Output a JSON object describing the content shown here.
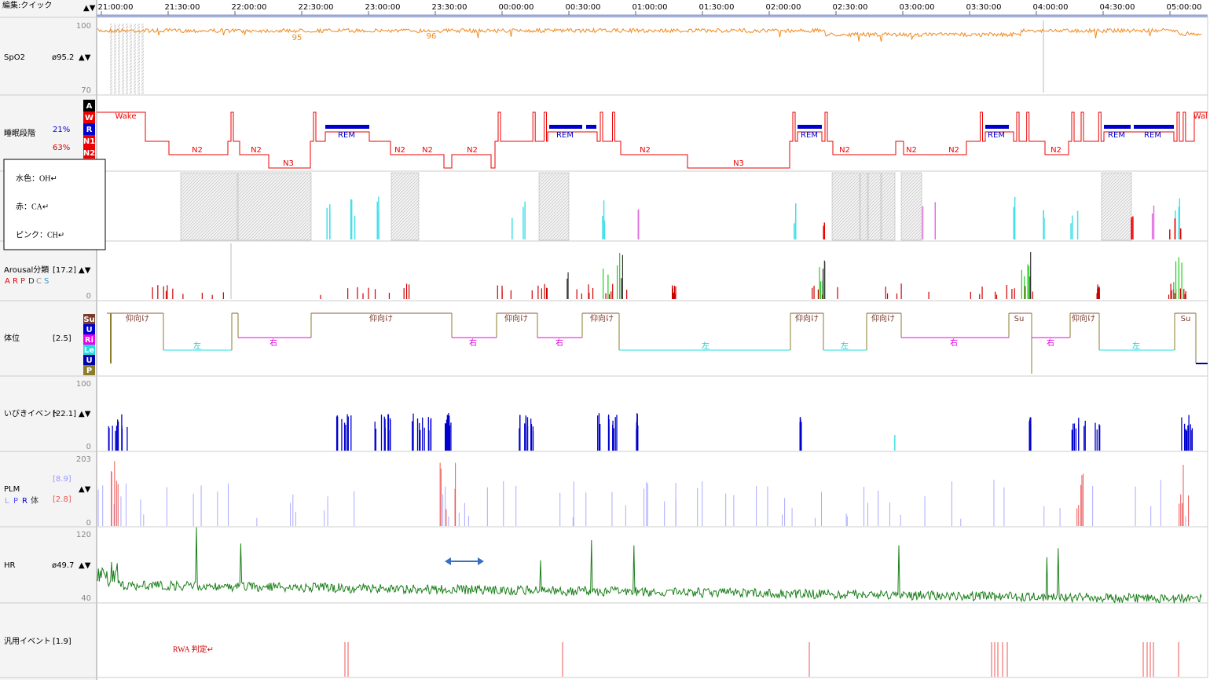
{
  "header": {
    "menu": "編集:クイック",
    "sort": "▲▼",
    "times": [
      "21:00:00",
      "21:30:00",
      "22:00:00",
      "22:30:00",
      "23:00:00",
      "23:30:00",
      "00:00:00",
      "00:30:00",
      "01:00:00",
      "01:30:00",
      "02:00:00",
      "02:30:00",
      "03:00:00",
      "03:30:00",
      "04:00:00",
      "04:30:00",
      "05:00:00"
    ]
  },
  "spo2": {
    "label": "SpO2",
    "value": "ø95.2",
    "arrows": "▲▼",
    "top": "100",
    "bottom": "70",
    "trace_labels": [
      "95",
      "96"
    ]
  },
  "sleep": {
    "label": "睡眠段階",
    "pct1": "21%",
    "pct2": "63%",
    "keys": [
      "A",
      "W",
      "R",
      "N1",
      "N2"
    ],
    "trace_labels": [
      "Wake",
      "N2",
      "N2",
      "N3",
      "REM",
      "N2",
      "N2",
      "N2",
      "REM",
      "N2",
      "N3",
      "REM",
      "N2",
      "N2",
      "N2",
      "REM",
      "N2",
      "REM",
      "REM",
      "Wal"
    ]
  },
  "legend": [
    "水色：OH↵",
    "赤：CA↵",
    "ピンク：CH↵"
  ],
  "arousal": {
    "label": "Arousal分類",
    "value": "[17.2]",
    "arrows": "▲▼",
    "keys": [
      "A",
      "R",
      "P",
      "D",
      "C",
      "S"
    ],
    "bottom": "0"
  },
  "position": {
    "label": "体位",
    "value": "[2.5]",
    "keys": [
      "Su",
      "U",
      "Ri",
      "Le",
      "U",
      "P"
    ],
    "trace_labels": [
      "仰向け",
      "左",
      "右",
      "仰向け",
      "右",
      "仰向け",
      "右",
      "仰向け",
      "左",
      "仰向け",
      "左",
      "仰向け",
      "右",
      "Su",
      "右",
      "仰向け",
      "左",
      "Su"
    ]
  },
  "snore": {
    "label": "いびきイベント",
    "value": "[22.1]",
    "arrows": "▲▼",
    "top": "100",
    "bottom": "0"
  },
  "plm": {
    "label": "PLM",
    "value1": "[8.9]",
    "value2": "[2.8]",
    "arrows": "▲▼",
    "keys": [
      "L",
      "P",
      "R",
      "体"
    ],
    "top": "203",
    "bottom": "0"
  },
  "hr": {
    "label": "HR",
    "value": "ø49.7",
    "arrows": "▲▼",
    "top": "120",
    "bottom": "40"
  },
  "general": {
    "label": "汎用イベント",
    "value": "[1.9]",
    "annotation": "RWA 判定↵"
  }
}
